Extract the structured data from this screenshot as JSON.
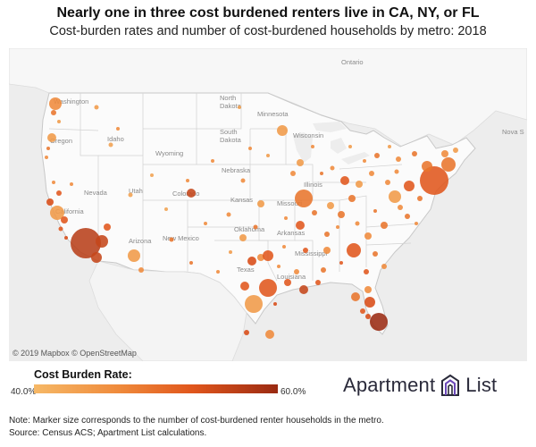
{
  "title": "Nearly one in three cost burdened renters live in CA, NY, or FL",
  "subtitle": "Cost-burden rates and number of cost-burdened households by metro: 2018",
  "map": {
    "attribution": "© 2019 Mapbox © OpenStreetMap",
    "place_labels": {
      "ontario": "Ontario",
      "washington": "Washington",
      "oregon": "Oregon",
      "idaho": "Idaho",
      "north_dakota_1": "North",
      "north_dakota_2": "Dakota",
      "south_dakota_1": "South",
      "south_dakota_2": "Dakota",
      "minnesota": "Minnesota",
      "wisconsin": "Wisconsin",
      "wyoming": "Wyoming",
      "nebraska": "Nebraska",
      "nevada": "Nevada",
      "utah": "Utah",
      "colorado": "Colorado",
      "kansas": "Kansas",
      "missouri": "Missouri",
      "illinois": "Illinois",
      "california": "California",
      "arizona": "Arizona",
      "new_mexico": "New Mexico",
      "oklahoma": "Oklahoma",
      "arkansas": "Arkansas",
      "mississippi": "Mississippi",
      "texas": "Texas",
      "louisiana": "Louisiana",
      "nova_scotia": "Nova S"
    },
    "markers_note": "circle area ~ number of cost-burdened renter households; color ~ cost burden rate"
  },
  "legend": {
    "title": "Cost Burden Rate:",
    "min_label": "40.0%",
    "max_label": "60.0%",
    "colors": [
      "#f6b866",
      "#ef8a3b",
      "#e0561c",
      "#9a2a12"
    ]
  },
  "brand": {
    "word1": "Apartment",
    "word2": "List",
    "color": "#2a2a3a"
  },
  "footer": {
    "note": "Note: Marker size corresponds to the number of cost-burdened renter households in the metro.",
    "source": "Source: Census ACS; Apartment List calculations."
  }
}
